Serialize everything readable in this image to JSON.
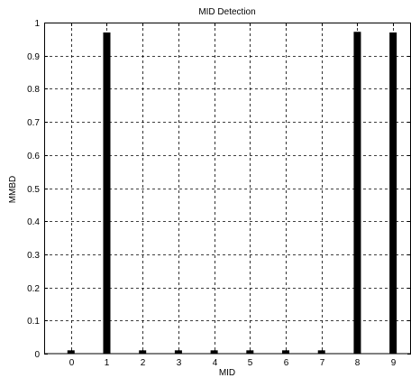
{
  "chart_data": {
    "type": "bar",
    "title": "MID Detection",
    "xlabel": "MID",
    "ylabel": "MMBD",
    "categories": [
      "0",
      "1",
      "2",
      "3",
      "4",
      "5",
      "6",
      "7",
      "8",
      "9"
    ],
    "values": [
      0.01,
      0.97,
      0.01,
      0.01,
      0.01,
      0.01,
      0.01,
      0.01,
      0.972,
      0.97
    ],
    "ylim": [
      0,
      1
    ],
    "yticks": [
      0,
      0.1,
      0.2,
      0.3,
      0.4,
      0.5,
      0.6,
      0.7,
      0.8,
      0.9,
      1
    ],
    "xlim": [
      -0.75,
      9.5
    ],
    "grid": true,
    "bar_color": "#000000"
  }
}
